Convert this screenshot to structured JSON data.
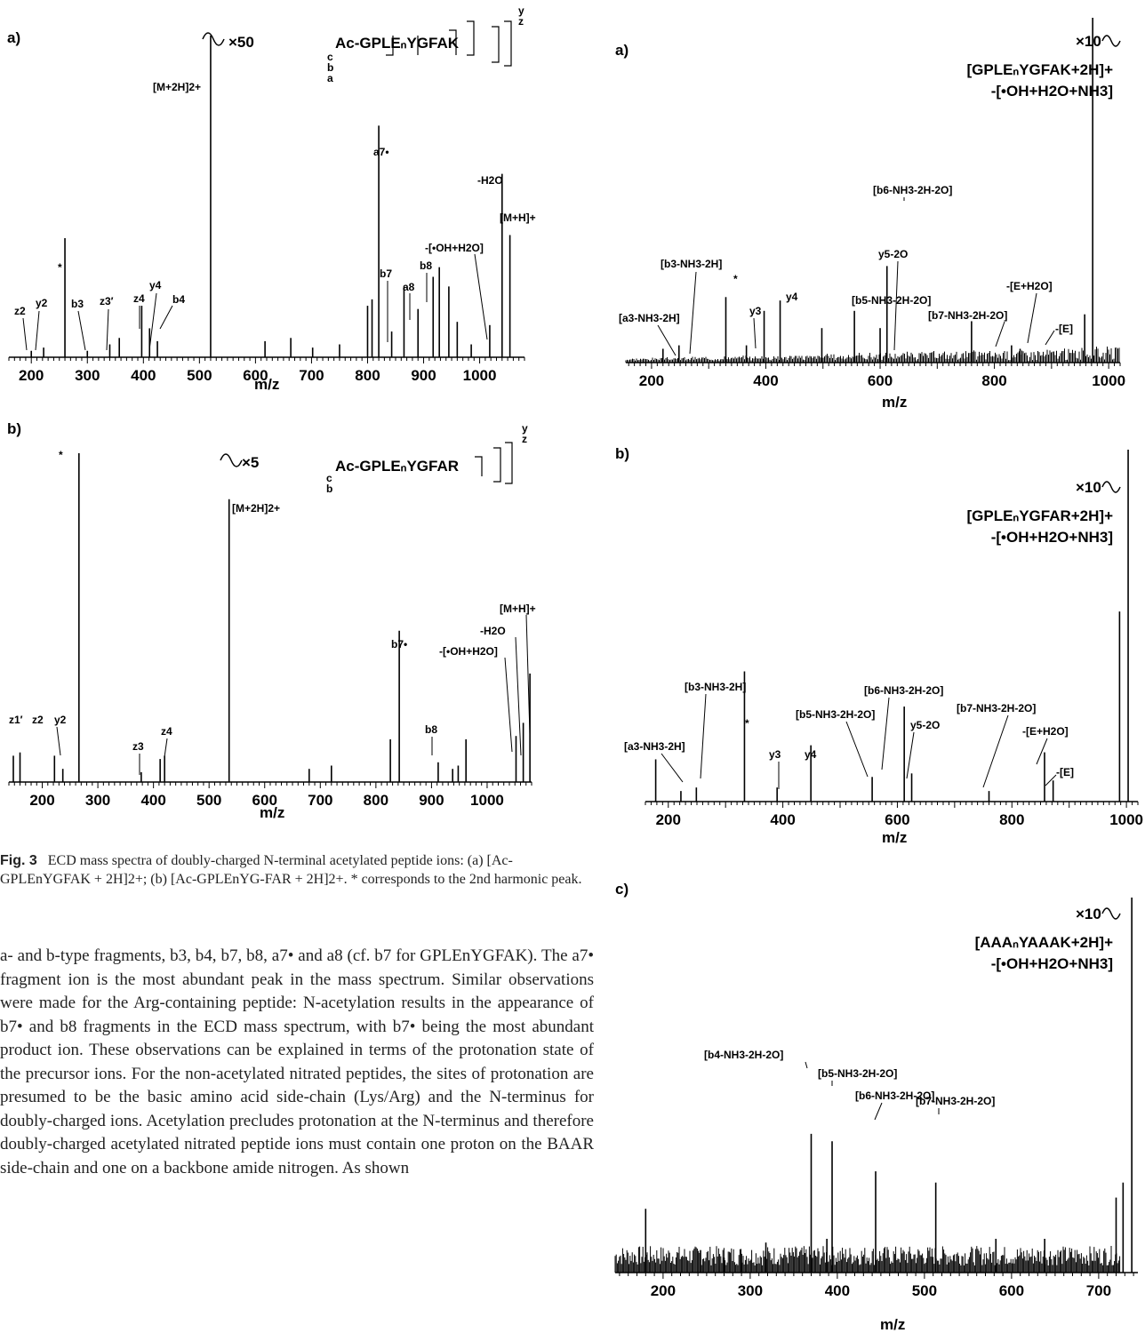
{
  "figure_left": {
    "caption_label": "Fig. 3",
    "caption_text": "ECD mass spectra of doubly-charged N-terminal acetylated peptide ions: (a) [Ac-GPLEnYGFAK + 2H]2+; (b) [Ac-GPLEnYG-FAR + 2H]2+. * corresponds to the 2nd harmonic peak.",
    "panels": [
      {
        "label": "a)",
        "xlabel": "m/z",
        "xticks": [
          200,
          300,
          400,
          500,
          600,
          700,
          800,
          900,
          1000
        ],
        "sequence_text": "Ac-GPLEₙYGFAK",
        "ion_letters_left": [
          "c",
          "b",
          "a"
        ],
        "ion_letters_right": [
          "y",
          "z"
        ],
        "break_label": "×50",
        "annotations": [
          "[M+2H]2+",
          "a7•",
          "-H2O",
          "[M+H]+",
          "-[•OH+H2O]",
          "b7",
          "b8",
          "a8",
          "*",
          "z2",
          "y2",
          "b3",
          "z3′",
          "z4",
          "y4",
          "b4"
        ]
      },
      {
        "label": "b)",
        "xlabel": "m/z",
        "xticks": [
          200,
          300,
          400,
          500,
          600,
          700,
          800,
          900,
          1000
        ],
        "sequence_text": "Ac-GPLEₙYGFAR",
        "ion_letters_left": [
          "c",
          "b"
        ],
        "ion_letters_right": [
          "y",
          "z"
        ],
        "break_label": "×5",
        "annotations": [
          "*",
          "[M+2H]2+",
          "[M+H]+",
          "-H2O",
          "-[•OH+H2O]",
          "b7•",
          "b8",
          "z1′",
          "z2",
          "y2",
          "z3",
          "z4"
        ]
      }
    ]
  },
  "body_text": "a- and b-type fragments, b3, b4, b7, b8, a7• and a8 (cf. b7 for GPLEnYGFAK). The a7• fragment ion is the most abundant peak in the mass spectrum. Similar observations were made for the Arg-containing peptide: N-acetylation results in the appearance of b7• and b8 fragments in the ECD mass spectrum, with b7• being the most abundant product ion. These observations can be explained in terms of the protonation state of the precursor ions. For the non-acetylated nitrated peptides, the sites of protonation are presumed to be the basic amino acid side-chain (Lys/Arg) and the N-terminus for doubly-charged ions. Acetylation precludes protonation at the N-terminus and therefore doubly-charged acetylated nitrated peptide ions must contain one proton on the BAAR side-chain and one on a backbone amide nitrogen. As shown",
  "figure_right": {
    "panels": [
      {
        "label": "a)",
        "xlabel": "m/z",
        "xticks": [
          200,
          400,
          600,
          800,
          1000
        ],
        "precursor_line1": "[GPLEₙYGFAK+2H]+",
        "precursor_line2": "-[•OH+H2O+NH3]",
        "break_label": "×10",
        "annotations": [
          "[b6-NH3-2H-2O]",
          "[b3-NH3-2H]",
          "y5-2O",
          "-[E+H2O]",
          "[b5-NH3-2H-2O]",
          "[b7-NH3-2H-2O]",
          "[a3-NH3-2H]",
          "y3",
          "y4",
          "-[E]",
          "*"
        ]
      },
      {
        "label": "b)",
        "xlabel": "m/z",
        "xticks": [
          200,
          400,
          600,
          800,
          1000
        ],
        "precursor_line1": "[GPLEₙYGFAR+2H]+",
        "precursor_line2": "-[•OH+H2O+NH3]",
        "break_label": "×10",
        "annotations": [
          "[b3-NH3-2H]",
          "[b6-NH3-2H-2O]",
          "[b7-NH3-2H-2O]",
          "[b5-NH3-2H-2O]",
          "y5-2O",
          "-[E+H2O]",
          "[a3-NH3-2H]",
          "y3",
          "y4",
          "-[E]",
          "*"
        ]
      },
      {
        "label": "c)",
        "xlabel": "m/z",
        "xticks": [
          200,
          300,
          400,
          500,
          600,
          700
        ],
        "precursor_line1": "[AAAₙYAAAK+2H]+",
        "precursor_line2": "-[•OH+H2O+NH3]",
        "break_label": "×10",
        "annotations": [
          "[b4-NH3-2H-2O]",
          "[b5-NH3-2H-2O]",
          "[b6-NH3-2H-2O]",
          "[b7-NH3-2H-2O]"
        ]
      }
    ]
  },
  "chart_data": [
    {
      "type": "bar",
      "panel": "left a)",
      "xlabel": "m/z",
      "xlim": [
        160,
        1080
      ],
      "ylim": [
        0,
        100
      ],
      "x": [
        200,
        222,
        260,
        300,
        340,
        357,
        397,
        411,
        425,
        520,
        617,
        663,
        702,
        750,
        800,
        808,
        820,
        843,
        865,
        890,
        917,
        928,
        945,
        960,
        985,
        1018,
        1040,
        1054
      ],
      "values": [
        2,
        3,
        37,
        2,
        4,
        6,
        16,
        9,
        5,
        100,
        5,
        6,
        3,
        4,
        16,
        18,
        72,
        8,
        22,
        15,
        25,
        28,
        22,
        11,
        4,
        10,
        57,
        38
      ]
    },
    {
      "type": "bar",
      "panel": "left b)",
      "xlabel": "m/z",
      "xlim": [
        140,
        1080
      ],
      "ylim": [
        0,
        100
      ],
      "x": [
        148,
        160,
        222,
        237,
        266,
        378,
        412,
        420,
        536,
        680,
        720,
        826,
        842,
        912,
        938,
        948,
        962,
        1052,
        1065,
        1077
      ],
      "values": [
        8,
        9,
        8,
        4,
        100,
        3,
        7,
        8,
        86,
        4,
        5,
        13,
        46,
        6,
        4,
        5,
        13,
        14,
        18,
        33
      ]
    },
    {
      "type": "bar",
      "panel": "right a)",
      "xlabel": "m/z",
      "xlim": [
        155,
        1020
      ],
      "ylim": [
        0,
        100
      ],
      "x": [
        220,
        248,
        330,
        366,
        397,
        425,
        498,
        555,
        600,
        612,
        760,
        830,
        845,
        958,
        972
      ],
      "values": [
        4,
        5,
        19,
        5,
        15,
        18,
        10,
        15,
        10,
        28,
        12,
        5,
        4,
        14,
        100
      ]
    },
    {
      "type": "bar",
      "panel": "right b)",
      "xlabel": "m/z",
      "xlim": [
        160,
        1020
      ],
      "ylim": [
        0,
        100
      ],
      "x": [
        178,
        222,
        249,
        333,
        390,
        449,
        556,
        612,
        625,
        760,
        857,
        872,
        988,
        1003
      ],
      "values": [
        12,
        3,
        4,
        37,
        4,
        16,
        7,
        27,
        8,
        3,
        14,
        6,
        54,
        100
      ]
    },
    {
      "type": "bar",
      "panel": "right c)",
      "xlabel": "m/z",
      "xlim": [
        145,
        745
      ],
      "ylim": [
        0,
        100
      ],
      "x": [
        180,
        243,
        270,
        290,
        318,
        370,
        388,
        394,
        444,
        513,
        582,
        638,
        720,
        728,
        738
      ],
      "values": [
        17,
        6,
        4,
        5,
        8,
        37,
        9,
        35,
        27,
        24,
        9,
        9,
        20,
        24,
        100
      ]
    }
  ]
}
